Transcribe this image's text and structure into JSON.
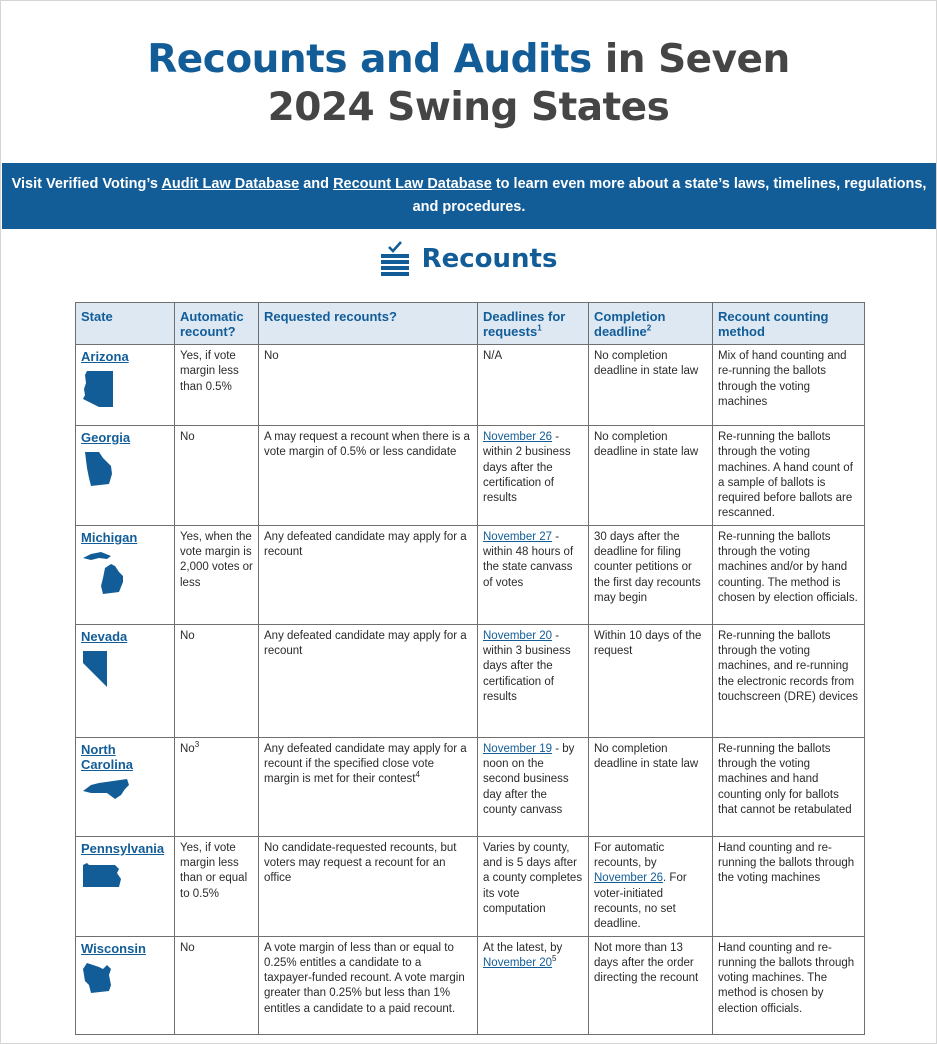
{
  "title": {
    "part1": "Recounts and Audits",
    "part2": "in Seven",
    "line2": "2024 Swing States"
  },
  "banner": {
    "lead": "Visit Verified Voting’s ",
    "link1": "Audit Law Database",
    "mid": " and ",
    "link2": "Recount Law Database",
    "tail": " to learn even more about a state’s laws, timelines, regulations, and procedures."
  },
  "section": {
    "title": "Recounts",
    "icon": "ballot-box-icon"
  },
  "table": {
    "headers": {
      "state": "State",
      "automatic": "Automatic recount?",
      "requested": "Requested recounts?",
      "deadlines": "Deadlines for requests",
      "deadlines_note": "1",
      "completion": "Completion deadline",
      "completion_note": "2",
      "method": "Recount counting method"
    },
    "rows": [
      {
        "state": "Arizona",
        "automatic": "Yes, if vote margin less than 0.5%",
        "requested": "No",
        "deadline_date": "",
        "deadline_text": "N/A",
        "completion_pre": "No completion deadline in state law",
        "completion_date": "",
        "completion_post": "",
        "method": "Mix of hand counting and re-running the ballots through the voting machines"
      },
      {
        "state": "Georgia",
        "automatic": "No",
        "requested": "A  may request a recount when there is a vote margin of 0.5% or less candidate",
        "deadline_date": "November 26",
        "deadline_text": " - within 2 business days after the certification of results",
        "completion_pre": "No completion deadline in state law",
        "completion_date": "",
        "completion_post": "",
        "method": "Re-running the ballots through the voting machines. A hand count of a sample of ballots is required before ballots are rescanned."
      },
      {
        "state": "Michigan",
        "automatic": "Yes, when the vote margin is 2,000 votes or less",
        "requested": "Any defeated candidate may apply for a recount",
        "deadline_date": "November 27",
        "deadline_text": " - within 48 hours of the state canvass of votes",
        "completion_pre": "30 days after the deadline for filing counter petitions or the first day recounts may begin",
        "completion_date": "",
        "completion_post": "",
        "method": "Re-running the ballots through the voting machines and/or by hand counting. The method is chosen by election officials."
      },
      {
        "state": "Nevada",
        "automatic": "No",
        "requested": "Any defeated candidate may apply for a recount",
        "deadline_date": "November 20",
        "deadline_text": " - within 3 business days after the certification of results",
        "completion_pre": "Within 10 days of the request",
        "completion_date": "",
        "completion_post": "",
        "method": "Re-running the ballots through the voting machines, and re-running the electronic records from touchscreen (DRE) devices"
      },
      {
        "state": "North Carolina",
        "automatic": "No",
        "automatic_note": "3",
        "requested": "Any defeated candidate may apply for a recount if the specified close vote margin is met for their contest",
        "requested_note": "4",
        "deadline_date": "November 19",
        "deadline_text": " - by noon on the second business day after the county canvass",
        "completion_pre": "No completion deadline in state law",
        "completion_date": "",
        "completion_post": "",
        "method": "Re-running the ballots through the voting machines and hand counting only for ballots that cannot be retabulated"
      },
      {
        "state": "Pennsylvania",
        "automatic": "Yes, if vote margin less than or equal to 0.5%",
        "requested": "No candidate-requested recounts, but voters may request a recount for an office",
        "deadline_date": "",
        "deadline_text": "Varies by county, and is 5 days after a county completes its vote computation",
        "completion_pre": "For automatic recounts, by ",
        "completion_date": "November 26",
        "completion_post": ". For voter-initiated recounts, no set deadline.",
        "method": "Hand counting and re-running the ballots through the voting machines"
      },
      {
        "state": "Wisconsin",
        "automatic": "No",
        "requested": "A vote margin of less than or equal to 0.25% entitles a candidate to a taxpayer-funded recount. A vote margin greater than 0.25% but less than 1% entitles a candidate to a paid recount.",
        "deadline_prefix": "At the latest, by ",
        "deadline_date": "November 20",
        "deadline_note": "5",
        "deadline_text": "",
        "completion_pre": "Not more than 13 days after the order directing the recount",
        "completion_date": "",
        "completion_post": "",
        "method": "Hand counting and re-running the ballots through voting machines. The method is chosen by election officials."
      }
    ]
  },
  "colors": {
    "brand_blue": "#125d98",
    "title_gray": "#454545",
    "header_bg": "#dde8f3",
    "text": "#2b2b2b"
  },
  "icons": {
    "arizona": "arizona-shape-icon",
    "georgia": "georgia-shape-icon",
    "michigan": "michigan-shape-icon",
    "nevada": "nevada-shape-icon",
    "north_carolina": "north-carolina-shape-icon",
    "pennsylvania": "pennsylvania-shape-icon",
    "wisconsin": "wisconsin-shape-icon"
  }
}
